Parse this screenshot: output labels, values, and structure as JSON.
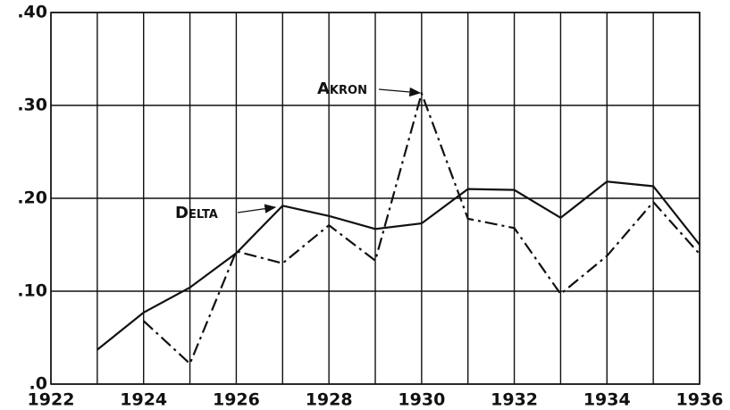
{
  "chart_data": {
    "type": "line",
    "x": [
      1923,
      1924,
      1925,
      1926,
      1927,
      1928,
      1929,
      1930,
      1931,
      1932,
      1933,
      1934,
      1935,
      1936
    ],
    "series": [
      {
        "name": "Delta",
        "color": "#111111",
        "dash": "solid",
        "values": [
          0.037,
          0.077,
          0.104,
          0.141,
          0.192,
          0.181,
          0.167,
          0.173,
          0.21,
          0.209,
          0.179,
          0.218,
          0.213,
          0.15
        ]
      },
      {
        "name": "Akron",
        "color": "#111111",
        "dash": "dashdot",
        "values": [
          null,
          0.068,
          0.022,
          0.143,
          0.13,
          0.171,
          0.133,
          0.313,
          0.178,
          0.168,
          0.097,
          0.138,
          0.196,
          0.14
        ]
      }
    ],
    "xlim": [
      1922,
      1936
    ],
    "xticks": [
      1922,
      1924,
      1926,
      1928,
      1930,
      1932,
      1934,
      1936
    ],
    "xminorticks": [
      1923,
      1925,
      1927,
      1929,
      1931,
      1933,
      1935
    ],
    "ylim": [
      0,
      0.4
    ],
    "yticks": [
      {
        "value": 0,
        "label": ".0"
      },
      {
        "value": 0.1,
        "label": ".10"
      },
      {
        "value": 0.2,
        "label": ".20"
      },
      {
        "value": 0.3,
        "label": ".30"
      },
      {
        "value": 0.4,
        "label": ".40"
      }
    ],
    "grid": true
  }
}
